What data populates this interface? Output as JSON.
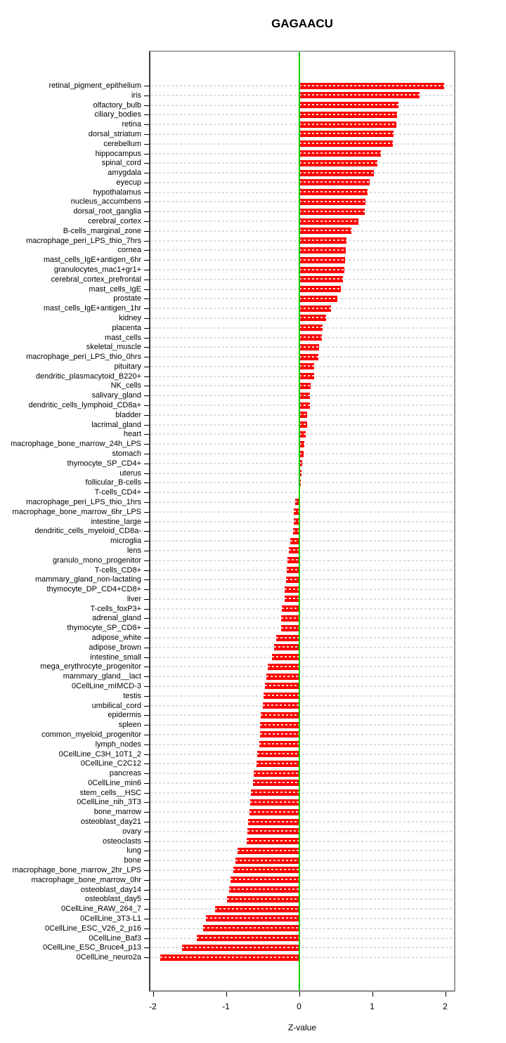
{
  "title": "GAGAACU",
  "chart_data": {
    "type": "bar",
    "orientation": "horizontal",
    "title": "GAGAACU",
    "xlabel": "Z-value",
    "xlim": [
      -2.1,
      2.15
    ],
    "x_ticks": [
      -2,
      -1,
      0,
      1,
      2
    ],
    "grid": true,
    "bar_color": "#ff0000",
    "zero_line_color": "#00cc00",
    "grid_color": "#dcdcdc",
    "categories": [
      "retinal_pigment_epithelium",
      "iris",
      "olfactory_bulb",
      "ciliary_bodies",
      "retina",
      "dorsal_striatum",
      "cerebellum",
      "hippocampus",
      "spinal_cord",
      "amygdala",
      "eyecup",
      "hypothalamus",
      "nucleus_accumbens",
      "dorsal_root_ganglia",
      "cerebral_cortex",
      "B-cells_marginal_zone",
      "macrophage_peri_LPS_thio_7hrs",
      "cornea",
      "mast_cells_IgE+antigen_6hr",
      "granulocytes_mac1+gr1+",
      "cerebral_cortex_prefrontal",
      "mast_cells_IgE",
      "prostate",
      "mast_cells_IgE+antigen_1hr",
      "kidney",
      "placenta",
      "mast_cells",
      "skeletal_muscle",
      "macrophage_peri_LPS_thio_0hrs",
      "pituitary",
      "dendritic_plasmacytoid_B220+",
      "NK_cells",
      "salivary_gland",
      "dendritic_cells_lymphoid_CD8a+",
      "bladder",
      "lacrimal_gland",
      "heart",
      "macrophage_bone_marrow_24h_LPS",
      "stomach",
      "thymocyte_SP_CD4+",
      "uterus",
      "follicular_B-cells",
      "T-cells_CD4+",
      "macrophage_peri_LPS_thio_1hrs",
      "macrophage_bone_marrow_6hr_LPS",
      "intestine_large",
      "dendritic_cells_myeloid_CD8a-",
      "microglia",
      "lens",
      "granulo_mono_progenitor",
      "T-cells_CD8+",
      "mammary_gland_non-lactating",
      "thymocyte_DP_CD4+CD8+",
      "liver",
      "T-cells_foxP3+",
      "adrenal_gland",
      "thymocyte_SP_CD8+",
      "adipose_white",
      "adipose_brown",
      "intestine_small",
      "mega_erythrocyte_progenitor",
      "mammary_gland__lact",
      "0CellLine_mIMCD-3",
      "testis",
      "umbilical_cord",
      "epidermis",
      "spleen",
      "common_myeloid_progenitor",
      "lymph_nodes",
      "0CellLine_C3H_10T1_2",
      "0CellLine_C2C12",
      "pancreas",
      "0CellLine_min6",
      "stem_cells__HSC",
      "0CellLine_nih_3T3",
      "bone_marrow",
      "osteoblast_day21",
      "ovary",
      "osteoclasts",
      "lung",
      "bone",
      "macrophage_bone_marrow_2hr_LPS",
      "macrophage_bone_marrow_0hr",
      "osteoblast_day14",
      "osteoblast_day5",
      "0CellLine_RAW_264_7",
      "0CellLine_3T3-L1",
      "0CellLine_ESC_V26_2_p16",
      "0CellLine_Baf3",
      "0CellLine_ESC_Bruce4_p13",
      "0CellLine_neuro2a"
    ],
    "values": [
      1.99,
      1.65,
      1.36,
      1.34,
      1.33,
      1.29,
      1.28,
      1.12,
      1.07,
      1.02,
      0.97,
      0.94,
      0.91,
      0.9,
      0.81,
      0.72,
      0.65,
      0.64,
      0.63,
      0.62,
      0.6,
      0.57,
      0.52,
      0.44,
      0.37,
      0.32,
      0.31,
      0.27,
      0.26,
      0.21,
      0.21,
      0.16,
      0.15,
      0.15,
      0.11,
      0.11,
      0.09,
      0.07,
      0.06,
      0.04,
      0.035,
      0.027,
      0.015,
      -0.05,
      -0.07,
      -0.07,
      -0.08,
      -0.12,
      -0.14,
      -0.16,
      -0.17,
      -0.18,
      -0.2,
      -0.2,
      -0.24,
      -0.25,
      -0.25,
      -0.31,
      -0.34,
      -0.37,
      -0.43,
      -0.45,
      -0.47,
      -0.49,
      -0.5,
      -0.52,
      -0.53,
      -0.53,
      -0.54,
      -0.57,
      -0.58,
      -0.62,
      -0.63,
      -0.66,
      -0.67,
      -0.68,
      -0.7,
      -0.71,
      -0.72,
      -0.84,
      -0.87,
      -0.9,
      -0.94,
      -0.96,
      -0.99,
      -1.15,
      -1.27,
      -1.31,
      -1.4,
      -1.6,
      -1.9
    ]
  }
}
